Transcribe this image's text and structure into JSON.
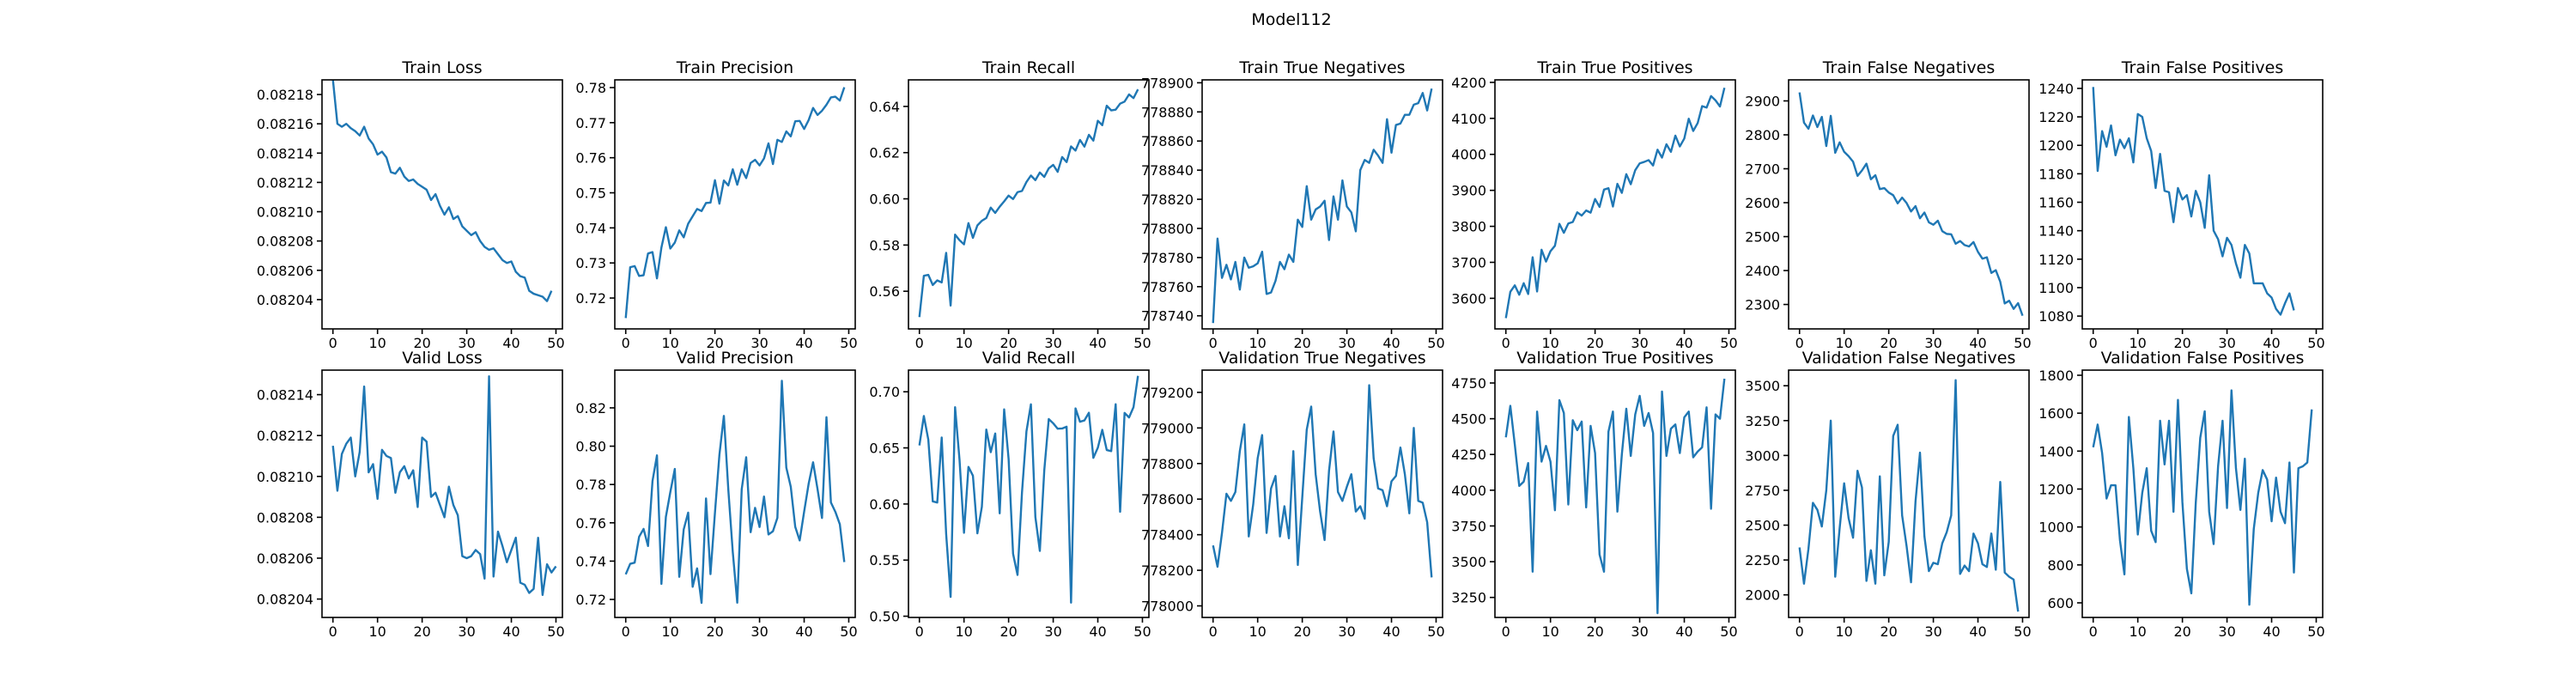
{
  "figure_title": "Model112",
  "series_color": "#1f77b4",
  "chart_data": [
    {
      "type": "line",
      "title": "Train Loss",
      "xlim": [
        -2.45,
        51.45
      ],
      "ylim": [
        0.08202,
        0.08219
      ],
      "xticks": [
        0,
        10,
        20,
        30,
        40,
        50
      ],
      "yticks": [
        0.08204,
        0.08206,
        0.08208,
        0.0821,
        0.08212,
        0.08214,
        0.08216,
        0.08218
      ],
      "ytick_labels": [
        "0.08204",
        "0.08206",
        "0.08208",
        "0.08210",
        "0.08212",
        "0.08214",
        "0.08216",
        "0.08218"
      ],
      "values": [
        0.08219,
        0.08216,
        0.082158,
        0.08216,
        0.082157,
        0.082155,
        0.082152,
        0.082158,
        0.08215,
        0.082146,
        0.082139,
        0.082141,
        0.082137,
        0.082127,
        0.082126,
        0.08213,
        0.082124,
        0.082121,
        0.082122,
        0.082119,
        0.082117,
        0.082115,
        0.082108,
        0.082112,
        0.082104,
        0.082098,
        0.082103,
        0.082095,
        0.082097,
        0.08209,
        0.082087,
        0.082084,
        0.082086,
        0.08208,
        0.082076,
        0.082074,
        0.082075,
        0.082071,
        0.082067,
        0.082065,
        0.082066,
        0.082059,
        0.082056,
        0.082055,
        0.082046,
        0.082044,
        0.082043,
        0.082042,
        0.082039,
        0.082046
      ]
    },
    {
      "type": "line",
      "title": "Train Precision",
      "xlim": [
        -2.45,
        51.45
      ],
      "ylim": [
        0.7112,
        0.7822
      ],
      "xticks": [
        0,
        10,
        20,
        30,
        40,
        50
      ],
      "yticks": [
        0.72,
        0.73,
        0.74,
        0.75,
        0.76,
        0.77,
        0.78
      ],
      "ytick_labels": [
        "0.72",
        "0.73",
        "0.74",
        "0.75",
        "0.76",
        "0.77",
        "0.78"
      ],
      "values": [
        0.7143,
        0.7288,
        0.7291,
        0.7263,
        0.7265,
        0.7327,
        0.7331,
        0.7256,
        0.7344,
        0.7402,
        0.7341,
        0.7358,
        0.7393,
        0.7373,
        0.7412,
        0.7433,
        0.7454,
        0.7448,
        0.7471,
        0.7472,
        0.7536,
        0.7469,
        0.7535,
        0.7521,
        0.7567,
        0.7523,
        0.7567,
        0.7542,
        0.7585,
        0.7594,
        0.7578,
        0.7598,
        0.7641,
        0.7582,
        0.7651,
        0.7645,
        0.7675,
        0.7661,
        0.7704,
        0.7705,
        0.7682,
        0.7707,
        0.7742,
        0.7722,
        0.7734,
        0.7751,
        0.7772,
        0.7774,
        0.7763,
        0.7801
      ]
    },
    {
      "type": "line",
      "title": "Train Recall",
      "xlim": [
        -2.45,
        51.45
      ],
      "ylim": [
        0.5437,
        0.6515
      ],
      "xticks": [
        0,
        10,
        20,
        30,
        40,
        50
      ],
      "yticks": [
        0.56,
        0.58,
        0.6,
        0.62,
        0.64
      ],
      "ytick_labels": [
        "0.56",
        "0.58",
        "0.60",
        "0.62",
        "0.64"
      ],
      "values": [
        0.5488,
        0.5667,
        0.5671,
        0.5627,
        0.5647,
        0.5638,
        0.5766,
        0.5538,
        0.5845,
        0.5821,
        0.5803,
        0.5895,
        0.5831,
        0.5885,
        0.5905,
        0.5917,
        0.5962,
        0.5939,
        0.5966,
        0.5989,
        0.6014,
        0.5999,
        0.6029,
        0.6034,
        0.6073,
        0.6101,
        0.6081,
        0.6114,
        0.6095,
        0.6132,
        0.6147,
        0.6117,
        0.6181,
        0.6159,
        0.6227,
        0.6209,
        0.6255,
        0.6226,
        0.6277,
        0.6252,
        0.6338,
        0.6319,
        0.6403,
        0.6383,
        0.6386,
        0.6412,
        0.6421,
        0.6452,
        0.6436,
        0.6474
      ]
    },
    {
      "type": "line",
      "title": "Train True Negatives",
      "xlim": [
        -2.45,
        51.45
      ],
      "ylim": [
        778731,
        778902
      ],
      "xticks": [
        0,
        10,
        20,
        30,
        40,
        50
      ],
      "yticks": [
        778740,
        778760,
        778780,
        778800,
        778820,
        778840,
        778860,
        778880,
        778900
      ],
      "ytick_labels": [
        "778740",
        "778760",
        "778780",
        "778800",
        "778820",
        "778840",
        "778860",
        "778880",
        "778900"
      ],
      "values": [
        778735,
        778793,
        778766,
        778775,
        778765,
        778777,
        778758,
        778780,
        778773,
        778774,
        778776,
        778784,
        778755,
        778756,
        778764,
        778777,
        778772,
        778782,
        778777,
        778806,
        778801,
        778829,
        778806,
        778813,
        778815,
        778819,
        778792,
        778822,
        778806,
        778833,
        778815,
        778811,
        778798,
        778840,
        778847,
        778845,
        778854,
        778850,
        778845,
        778875,
        778852,
        778871,
        778872,
        778878,
        778878,
        778885,
        778886,
        778893,
        778881,
        778896
      ]
    },
    {
      "type": "line",
      "title": "Train True Positives",
      "xlim": [
        -2.45,
        51.45
      ],
      "ylim": [
        3515,
        4207
      ],
      "xticks": [
        0,
        10,
        20,
        30,
        40,
        50
      ],
      "yticks": [
        3600,
        3700,
        3800,
        3900,
        4000,
        4100,
        4200
      ],
      "ytick_labels": [
        "3600",
        "3700",
        "3800",
        "3900",
        "4000",
        "4100",
        "4200"
      ],
      "values": [
        3545,
        3618,
        3636,
        3610,
        3642,
        3612,
        3714,
        3619,
        3735,
        3702,
        3731,
        3746,
        3807,
        3782,
        3808,
        3812,
        3839,
        3830,
        3844,
        3838,
        3876,
        3854,
        3902,
        3906,
        3855,
        3918,
        3893,
        3945,
        3917,
        3956,
        3975,
        3979,
        3984,
        3969,
        4013,
        3991,
        4028,
        4007,
        4052,
        4022,
        4044,
        4099,
        4065,
        4087,
        4134,
        4130,
        4162,
        4150,
        4133,
        4185
      ]
    },
    {
      "type": "line",
      "title": "Train False Negatives",
      "xlim": [
        -2.45,
        51.45
      ],
      "ylim": [
        2228,
        2962
      ],
      "xticks": [
        0,
        10,
        20,
        30,
        40,
        50
      ],
      "yticks": [
        2300,
        2400,
        2500,
        2600,
        2700,
        2800,
        2900
      ],
      "ytick_labels": [
        "2300",
        "2400",
        "2500",
        "2600",
        "2700",
        "2800",
        "2900"
      ],
      "values": [
        2925,
        2836,
        2818,
        2857,
        2823,
        2853,
        2767,
        2856,
        2747,
        2778,
        2750,
        2737,
        2721,
        2679,
        2695,
        2715,
        2669,
        2681,
        2640,
        2643,
        2630,
        2622,
        2598,
        2615,
        2599,
        2574,
        2590,
        2554,
        2571,
        2542,
        2535,
        2547,
        2516,
        2508,
        2507,
        2479,
        2487,
        2475,
        2471,
        2484,
        2455,
        2435,
        2439,
        2393,
        2401,
        2367,
        2303,
        2311,
        2287,
        2304,
        2267
      ]
    },
    {
      "type": "line",
      "title": "Train False Positives",
      "xlim": [
        -2.45,
        51.45
      ],
      "ylim": [
        1071,
        1246
      ],
      "xticks": [
        0,
        10,
        20,
        30,
        40,
        50
      ],
      "yticks": [
        1080,
        1100,
        1120,
        1140,
        1160,
        1180,
        1200,
        1220,
        1240
      ],
      "ytick_labels": [
        "1080",
        "1100",
        "1120",
        "1140",
        "1160",
        "1180",
        "1200",
        "1220",
        "1240"
      ],
      "values": [
        1241,
        1182,
        1210,
        1199,
        1214,
        1193,
        1204,
        1198,
        1205,
        1188,
        1222,
        1220,
        1205,
        1196,
        1170,
        1194,
        1168,
        1167,
        1146,
        1170,
        1162,
        1165,
        1150,
        1168,
        1160,
        1142,
        1179,
        1140,
        1134,
        1122,
        1135,
        1130,
        1117,
        1107,
        1130,
        1124,
        1103,
        1103,
        1103,
        1096,
        1093,
        1085,
        1081,
        1089,
        1096,
        1084
      ]
    },
    {
      "type": "line",
      "title": "Valid Loss",
      "xlim": [
        -2.45,
        51.45
      ],
      "ylim": [
        0.082031,
        0.082152
      ],
      "xticks": [
        0,
        10,
        20,
        30,
        40,
        50
      ],
      "yticks": [
        0.08204,
        0.08206,
        0.08208,
        0.0821,
        0.08212,
        0.08214
      ],
      "ytick_labels": [
        "0.08204",
        "0.08206",
        "0.08208",
        "0.08210",
        "0.08212",
        "0.08214"
      ],
      "values": [
        0.082115,
        0.082093,
        0.082111,
        0.082116,
        0.082119,
        0.0821,
        0.082112,
        0.082144,
        0.082102,
        0.082106,
        0.082089,
        0.082113,
        0.08211,
        0.082109,
        0.082092,
        0.082102,
        0.082105,
        0.082099,
        0.082103,
        0.082085,
        0.082119,
        0.082117,
        0.08209,
        0.082092,
        0.082086,
        0.08208,
        0.082095,
        0.082086,
        0.082081,
        0.082061,
        0.08206,
        0.082061,
        0.082064,
        0.082062,
        0.08205,
        0.082149,
        0.082051,
        0.082073,
        0.082066,
        0.082058,
        0.082064,
        0.08207,
        0.082048,
        0.082047,
        0.082043,
        0.082045,
        0.08207,
        0.082042,
        0.082057,
        0.082053,
        0.082056
      ]
    },
    {
      "type": "line",
      "title": "Valid Precision",
      "xlim": [
        -2.45,
        51.45
      ],
      "ylim": [
        0.7106,
        0.8397
      ],
      "xticks": [
        0,
        10,
        20,
        30,
        40,
        50
      ],
      "yticks": [
        0.72,
        0.74,
        0.76,
        0.78,
        0.8,
        0.82
      ],
      "ytick_labels": [
        "0.72",
        "0.74",
        "0.76",
        "0.78",
        "0.80",
        "0.82"
      ],
      "values": [
        0.7331,
        0.7386,
        0.7392,
        0.7527,
        0.7568,
        0.7479,
        0.7818,
        0.7952,
        0.7281,
        0.7631,
        0.7761,
        0.7881,
        0.7318,
        0.7566,
        0.7653,
        0.7266,
        0.7362,
        0.7182,
        0.7727,
        0.7332,
        0.7652,
        0.7955,
        0.8158,
        0.7772,
        0.7447,
        0.7183,
        0.7775,
        0.7942,
        0.7551,
        0.7678,
        0.7578,
        0.7737,
        0.7539,
        0.7556,
        0.7626,
        0.8341,
        0.7888,
        0.7788,
        0.7579,
        0.7508,
        0.7659,
        0.7803,
        0.7916,
        0.7776,
        0.7625,
        0.8151,
        0.7706,
        0.7657,
        0.7592,
        0.7395
      ]
    },
    {
      "type": "line",
      "title": "Valid Recall",
      "xlim": [
        -2.45,
        51.45
      ],
      "ylim": [
        0.4989,
        0.7193
      ],
      "xticks": [
        0,
        10,
        20,
        30,
        40,
        50
      ],
      "yticks": [
        0.5,
        0.55,
        0.6,
        0.65,
        0.7
      ],
      "ytick_labels": [
        "0.50",
        "0.55",
        "0.60",
        "0.65",
        "0.70"
      ],
      "values": [
        0.6522,
        0.6784,
        0.6573,
        0.6023,
        0.6013,
        0.6593,
        0.5732,
        0.5172,
        0.6862,
        0.6392,
        0.5743,
        0.6331,
        0.6252,
        0.5739,
        0.5974,
        0.6663,
        0.6462,
        0.6628,
        0.5917,
        0.6843,
        0.6401,
        0.5556,
        0.5368,
        0.6103,
        0.6647,
        0.6888,
        0.5884,
        0.5582,
        0.6302,
        0.6757,
        0.6719,
        0.6671,
        0.6673,
        0.6689,
        0.5121,
        0.6852,
        0.6733,
        0.6745,
        0.6813,
        0.6411,
        0.6501,
        0.6661,
        0.6481,
        0.6471,
        0.6889,
        0.5931,
        0.6812,
        0.6771,
        0.6863,
        0.7142
      ]
    },
    {
      "type": "line",
      "title": "Validation True Negatives",
      "xlim": [
        -2.45,
        51.45
      ],
      "ylim": [
        777935,
        779325
      ],
      "xticks": [
        0,
        10,
        20,
        30,
        40,
        50
      ],
      "yticks": [
        778000,
        778200,
        778400,
        778600,
        778800,
        779000,
        779200
      ],
      "ytick_labels": [
        "778000",
        "778200",
        "778400",
        "778600",
        "778800",
        "779000",
        "779200"
      ],
      "values": [
        778340,
        778220,
        778410,
        778630,
        778590,
        778640,
        778870,
        779020,
        778390,
        778570,
        778830,
        778960,
        778410,
        778660,
        778730,
        778390,
        778560,
        778380,
        778870,
        778230,
        778610,
        778990,
        779120,
        778740,
        778530,
        778370,
        778760,
        778980,
        778640,
        778590,
        778670,
        778740,
        778530,
        778560,
        778490,
        779240,
        778830,
        778660,
        778650,
        778560,
        778700,
        778730,
        778890,
        778740,
        778520,
        779000,
        778590,
        778580,
        778470,
        778160
      ]
    },
    {
      "type": "line",
      "title": "Validation True Positives",
      "xlim": [
        -2.45,
        51.45
      ],
      "ylim": [
        3110,
        4840
      ],
      "xticks": [
        0,
        10,
        20,
        30,
        40,
        50
      ],
      "yticks": [
        3250,
        3500,
        3750,
        4000,
        4250,
        4500,
        4750
      ],
      "ytick_labels": [
        "3250",
        "3500",
        "3750",
        "4000",
        "4250",
        "4500",
        "4750"
      ],
      "values": [
        4370,
        4590,
        4320,
        4030,
        4060,
        4190,
        3430,
        4550,
        4200,
        4310,
        4200,
        3860,
        4630,
        4540,
        3900,
        4490,
        4420,
        4480,
        3880,
        4450,
        4260,
        3550,
        3430,
        4410,
        4550,
        3850,
        4250,
        4570,
        4240,
        4530,
        4660,
        4450,
        4540,
        4400,
        3140,
        4690,
        4240,
        4430,
        4460,
        4260,
        4510,
        4550,
        4230,
        4270,
        4300,
        4580,
        3870,
        4530,
        4500,
        4780
      ]
    },
    {
      "type": "line",
      "title": "Validation False Negatives",
      "xlim": [
        -2.45,
        51.45
      ],
      "ylim": [
        1838,
        3612
      ],
      "xticks": [
        0,
        10,
        20,
        30,
        40,
        50
      ],
      "yticks": [
        2000,
        2250,
        2500,
        2750,
        3000,
        3250,
        3500
      ],
      "ytick_labels": [
        "2000",
        "2250",
        "2500",
        "2750",
        "3000",
        "3250",
        "3500"
      ],
      "values": [
        2340,
        2080,
        2330,
        2660,
        2610,
        2490,
        2750,
        3250,
        2130,
        2480,
        2800,
        2550,
        2410,
        2890,
        2770,
        2100,
        2320,
        2080,
        2850,
        2140,
        2380,
        3140,
        3220,
        2570,
        2350,
        2090,
        2670,
        3020,
        2420,
        2170,
        2230,
        2220,
        2370,
        2450,
        2570,
        3540,
        2150,
        2210,
        2170,
        2440,
        2370,
        2220,
        2200,
        2440,
        2180,
        2810,
        2160,
        2130,
        2110,
        1880
      ]
    },
    {
      "type": "line",
      "title": "Validation False Positives",
      "xlim": [
        -2.45,
        51.45
      ],
      "ylim": [
        523,
        1827
      ],
      "xticks": [
        0,
        10,
        20,
        30,
        40,
        50
      ],
      "yticks": [
        600,
        800,
        1000,
        1200,
        1400,
        1600,
        1800
      ],
      "ytick_labels": [
        "600",
        "800",
        "1000",
        "1200",
        "1400",
        "1600",
        "1800"
      ],
      "values": [
        1420,
        1540,
        1390,
        1150,
        1220,
        1220,
        930,
        750,
        1580,
        1310,
        960,
        1180,
        1310,
        980,
        920,
        1560,
        1330,
        1560,
        1080,
        1670,
        1130,
        780,
        650,
        1130,
        1470,
        1610,
        1080,
        910,
        1320,
        1560,
        1100,
        1720,
        1310,
        1090,
        1360,
        590,
        990,
        1180,
        1300,
        1250,
        1030,
        1260,
        1080,
        1020,
        1340,
        760,
        1310,
        1320,
        1340,
        1620
      ]
    }
  ]
}
